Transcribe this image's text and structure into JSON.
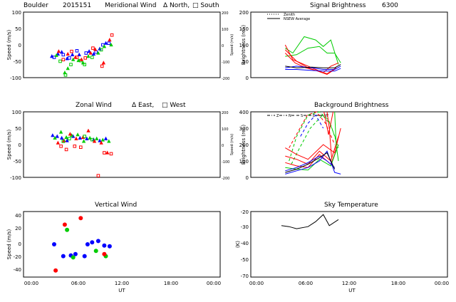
{
  "colors": {
    "red": "#ff0000",
    "green": "#00cc00",
    "blue": "#0000ff",
    "black": "#000000"
  },
  "header": {
    "site": "Boulder",
    "date": "2015151",
    "meridional_title": "Meridional Wind",
    "north_marker": "Δ North,",
    "south_marker": "□ South",
    "zonal_title": "Zonal Wind",
    "east_marker": "Δ East,",
    "west_marker": "□ West",
    "vertical_title": "Vertical Wind",
    "signal_title": "Signal Brightness",
    "wavelength": "6300",
    "background_title": "Background Brightness",
    "sky_title": "Sky Temperature"
  },
  "axes": {
    "speed_label": "Speed (m/s)",
    "speed_right_label": "Speed (m/s)",
    "brightness_label": "Brightness (rel.)",
    "sky_label": "(K)",
    "x_label": "UT",
    "x_ticks": [
      "00:00",
      "06:00",
      "12:00",
      "18:00",
      "00:00"
    ],
    "wind_y_ticks": [
      "100",
      "50",
      "0",
      "-50",
      "-100"
    ],
    "wind_right_ticks": [
      "200",
      "100",
      "0",
      "-100",
      "-200"
    ],
    "vert_y_ticks": [
      "40",
      "20",
      "0",
      "-20",
      "-40"
    ],
    "signal_y_ticks": [
      "200",
      "150",
      "100",
      "50",
      "0"
    ],
    "bg_y_ticks": [
      "400",
      "300",
      "200",
      "100",
      "0"
    ],
    "sky_y_ticks": [
      "-20",
      "-30",
      "-40",
      "-50",
      "-60",
      "-70",
      "-80"
    ]
  },
  "legend": {
    "zenith": "Zenith",
    "nsew": "NSEW Average",
    "bg_labels": [
      "Z",
      "N",
      "S",
      "E",
      "W"
    ]
  },
  "chart_data": [
    {
      "type": "scatter",
      "title": "Meridional Wind",
      "xlabel": "UT",
      "ylabel": "Speed (m/s)",
      "xlim": [
        0,
        24
      ],
      "ylim": [
        -100,
        100
      ],
      "series": [
        {
          "name": "blue-north",
          "color": "blue",
          "marker": "triangle",
          "x": [
            2.7,
            3.5,
            4.0,
            4.7,
            5.4,
            6.3,
            7.6,
            8.2,
            9.0,
            9.8
          ],
          "y": [
            -35,
            -28,
            -22,
            -42,
            -30,
            -30,
            -20,
            -28,
            -12,
            5
          ]
        },
        {
          "name": "blue-south",
          "color": "blue",
          "marker": "square",
          "x": [
            3.0,
            4.2,
            5.0,
            6.0,
            7.2,
            8.5,
            9.4,
            10.2
          ],
          "y": [
            -38,
            -30,
            -40,
            -18,
            -25,
            -22,
            0,
            5
          ]
        },
        {
          "name": "green-north",
          "color": "green",
          "marker": "triangle",
          "x": [
            3.3,
            4.4,
            4.8,
            5.5,
            6.2,
            6.8,
            7.5,
            8.8,
            9.6,
            10.5
          ],
          "y": [
            -32,
            -85,
            -72,
            -45,
            -48,
            -55,
            -35,
            -25,
            -5,
            0
          ]
        },
        {
          "name": "green-south",
          "color": "green",
          "marker": "square",
          "x": [
            3.8,
            4.5,
            5.2,
            6.5,
            7.0,
            8.0,
            9.2
          ],
          "y": [
            -50,
            -92,
            -60,
            -48,
            -60,
            -38,
            -15
          ]
        },
        {
          "name": "red-north",
          "color": "red",
          "marker": "triangle",
          "x": [
            3.6,
            4.8,
            5.8,
            6.6,
            7.8,
            8.4,
            9.5,
            10.3
          ],
          "y": [
            -20,
            -28,
            -38,
            -45,
            -25,
            -14,
            -55,
            15
          ]
        },
        {
          "name": "red-south",
          "color": "red",
          "marker": "square",
          "x": [
            4.2,
            5.3,
            6.0,
            7.1,
            8.1,
            9.3,
            10.6
          ],
          "y": [
            -45,
            -20,
            -38,
            -40,
            -10,
            -65,
            30
          ]
        }
      ]
    },
    {
      "type": "scatter",
      "title": "Zonal Wind",
      "xlabel": "UT",
      "ylabel": "Speed (m/s)",
      "xlim": [
        0,
        24
      ],
      "ylim": [
        -100,
        100
      ],
      "series": [
        {
          "name": "blue-east",
          "color": "blue",
          "marker": "triangle",
          "x": [
            2.8,
            3.4,
            4.0,
            4.7,
            5.5,
            6.4,
            7.3,
            8.2,
            9.0,
            9.8
          ],
          "y": [
            28,
            25,
            20,
            12,
            25,
            20,
            18,
            15,
            12,
            18
          ]
        },
        {
          "name": "green-east",
          "color": "green",
          "marker": "triangle",
          "x": [
            3.1,
            3.9,
            4.6,
            5.3,
            6.1,
            6.9,
            7.7,
            8.6,
            9.4,
            10.2
          ],
          "y": [
            20,
            38,
            22,
            28,
            30,
            10,
            20,
            18,
            14,
            10
          ]
        },
        {
          "name": "red-east",
          "color": "red",
          "marker": "triangle",
          "x": [
            3.5,
            4.3,
            5.1,
            5.9,
            6.8,
            7.5,
            8.3,
            9.2,
            10.0
          ],
          "y": [
            5,
            12,
            32,
            18,
            22,
            42,
            10,
            5,
            -25
          ]
        },
        {
          "name": "red-west",
          "color": "red",
          "marker": "square",
          "x": [
            3.9,
            4.6,
            5.7,
            6.5,
            8.8,
            9.6,
            10.5
          ],
          "y": [
            -5,
            -15,
            -5,
            -8,
            -95,
            -25,
            -28
          ]
        },
        {
          "name": "green-west",
          "color": "green",
          "marker": "square",
          "x": [
            4.2,
            5.0,
            7.0,
            8.0
          ],
          "y": [
            10,
            18,
            25,
            15
          ]
        }
      ]
    },
    {
      "type": "scatter",
      "title": "Vertical Wind",
      "xlabel": "UT",
      "ylabel": "Speed (m/s)",
      "xlim": [
        0,
        24
      ],
      "ylim": [
        -50,
        50
      ],
      "series": [
        {
          "name": "blue",
          "color": "blue",
          "x": [
            3.0,
            4.2,
            5.2,
            5.8,
            7.0,
            7.4,
            8.0,
            8.8,
            9.6,
            10.3
          ],
          "y": [
            0,
            -18,
            -17,
            -15,
            -18,
            0,
            3,
            5,
            -2,
            -3
          ]
        },
        {
          "name": "green",
          "color": "green",
          "x": [
            4.7,
            5.5,
            8.5,
            9.8
          ],
          "y": [
            22,
            -20,
            -10,
            -18
          ]
        },
        {
          "name": "red",
          "color": "red",
          "x": [
            3.2,
            4.4,
            6.5,
            9.6
          ],
          "y": [
            -40,
            30,
            40,
            -15
          ]
        }
      ]
    },
    {
      "type": "line",
      "title": "Signal Brightness 6300",
      "xlabel": "UT",
      "ylabel": "Brightness (rel.)",
      "xlim": [
        0,
        24
      ],
      "ylim": [
        0,
        200
      ],
      "series": [
        {
          "name": "green-1",
          "color": "green",
          "x": [
            3.5,
            4.5,
            6.0,
            7.5,
            8.5,
            9.5,
            10.5
          ],
          "y": [
            90,
            75,
            125,
            115,
            95,
            115,
            40
          ]
        },
        {
          "name": "green-2",
          "color": "green",
          "x": [
            3.5,
            5.0,
            6.5,
            8.0,
            9.0,
            10.0,
            10.8
          ],
          "y": [
            65,
            70,
            90,
            95,
            75,
            75,
            45
          ]
        },
        {
          "name": "red-1",
          "color": "red",
          "x": [
            3.5,
            4.5,
            6.0,
            7.5,
            8.5,
            9.5,
            10.5
          ],
          "y": [
            100,
            55,
            40,
            25,
            15,
            35,
            45
          ]
        },
        {
          "name": "red-2",
          "color": "red",
          "x": [
            3.5,
            5.0,
            6.5,
            8.0,
            9.0,
            10.0
          ],
          "y": [
            85,
            50,
            30,
            18,
            10,
            25
          ]
        },
        {
          "name": "red-3",
          "color": "red",
          "x": [
            3.5,
            4.8,
            6.2,
            7.8,
            9.0,
            10.2
          ],
          "y": [
            75,
            45,
            30,
            20,
            12,
            30
          ]
        },
        {
          "name": "blue-1",
          "color": "blue",
          "x": [
            3.5,
            5.0,
            7.0,
            8.5,
            10.0,
            10.8
          ],
          "y": [
            30,
            35,
            30,
            25,
            25,
            35
          ]
        },
        {
          "name": "blue-2",
          "color": "blue",
          "x": [
            3.5,
            5.0,
            7.0,
            8.5,
            10.0,
            10.8
          ],
          "y": [
            25,
            25,
            22,
            20,
            20,
            28
          ]
        },
        {
          "name": "black",
          "color": "black",
          "x": [
            3.5,
            5.0,
            7.0,
            8.5,
            10.0,
            10.8
          ],
          "y": [
            35,
            30,
            32,
            30,
            30,
            40
          ]
        }
      ]
    },
    {
      "type": "line",
      "title": "Background Brightness",
      "xlabel": "UT",
      "ylabel": "Brightness (rel.)",
      "xlim": [
        0,
        24
      ],
      "ylim": [
        0,
        400
      ],
      "series": [
        {
          "name": "green-dash-1",
          "color": "green",
          "dashed": true,
          "x": [
            4.0,
            5.0,
            6.5,
            8.0,
            9.2,
            10.2
          ],
          "y": [
            100,
            250,
            380,
            400,
            350,
            230
          ]
        },
        {
          "name": "green-dash-2",
          "color": "green",
          "dashed": true,
          "x": [
            4.3,
            5.4,
            6.8,
            8.4,
            9.5,
            10.5
          ],
          "y": [
            80,
            180,
            300,
            380,
            320,
            180
          ]
        },
        {
          "name": "red-dash-1",
          "color": "red",
          "dashed": true,
          "x": [
            4.0,
            5.2,
            6.4,
            7.6,
            8.8,
            10.0
          ],
          "y": [
            180,
            280,
            380,
            400,
            330,
            200
          ]
        },
        {
          "name": "blue-dash-1",
          "color": "blue",
          "dashed": true,
          "x": [
            5.5,
            6.5,
            7.5,
            8.5
          ],
          "y": [
            250,
            330,
            380,
            300
          ]
        },
        {
          "name": "red-1",
          "color": "red",
          "x": [
            3.5,
            5.0,
            6.5,
            8.0,
            9.5,
            10.5
          ],
          "y": [
            130,
            110,
            80,
            160,
            100,
            250
          ]
        },
        {
          "name": "red-2",
          "color": "red",
          "x": [
            3.5,
            5.0,
            6.5,
            8.0,
            9.5,
            10.5
          ],
          "y": [
            90,
            70,
            60,
            140,
            80,
            200
          ]
        },
        {
          "name": "red-3",
          "color": "red",
          "x": [
            3.5,
            5.0,
            6.5,
            8.5,
            10.0,
            10.8
          ],
          "y": [
            180,
            140,
            110,
            200,
            150,
            300
          ]
        },
        {
          "name": "red-4",
          "color": "red",
          "x": [
            9.0,
            9.3,
            9.6
          ],
          "y": [
            400,
            300,
            120
          ]
        },
        {
          "name": "red-5",
          "color": "red",
          "x": [
            8.6,
            9.2,
            9.8
          ],
          "y": [
            400,
            260,
            400
          ]
        },
        {
          "name": "green-1",
          "color": "green",
          "x": [
            3.5,
            5.0,
            6.5,
            8.0,
            9.5,
            10.5
          ],
          "y": [
            60,
            50,
            45,
            110,
            70,
            200
          ]
        },
        {
          "name": "green-2",
          "color": "green",
          "x": [
            10.0,
            10.2,
            10.5
          ],
          "y": [
            400,
            200,
            100
          ]
        },
        {
          "name": "blue-1",
          "color": "blue",
          "x": [
            3.5,
            5.0,
            6.5,
            8.0,
            9.0,
            10.0,
            10.8
          ],
          "y": [
            20,
            40,
            60,
            100,
            160,
            30,
            20
          ]
        },
        {
          "name": "blue-2",
          "color": "blue",
          "x": [
            3.5,
            5.0,
            6.5,
            8.0,
            9.0,
            10.0
          ],
          "y": [
            40,
            60,
            90,
            130,
            100,
            60
          ]
        },
        {
          "name": "black-1",
          "color": "black",
          "x": [
            3.5,
            5.0,
            6.5,
            8.0,
            9.0,
            10.0
          ],
          "y": [
            30,
            50,
            80,
            120,
            150,
            50
          ]
        }
      ]
    },
    {
      "type": "line",
      "title": "Sky Temperature",
      "xlabel": "UT",
      "ylabel": "(K)",
      "xlim": [
        0,
        24
      ],
      "ylim": [
        -80,
        -15
      ],
      "series": [
        {
          "name": "sky",
          "color": "black",
          "x": [
            3.0,
            4.0,
            5.0,
            6.5,
            7.5,
            8.5,
            9.3,
            10.5
          ],
          "y": [
            -29,
            -30,
            -32,
            -30,
            -25,
            -18,
            -29,
            -23
          ]
        }
      ]
    }
  ]
}
